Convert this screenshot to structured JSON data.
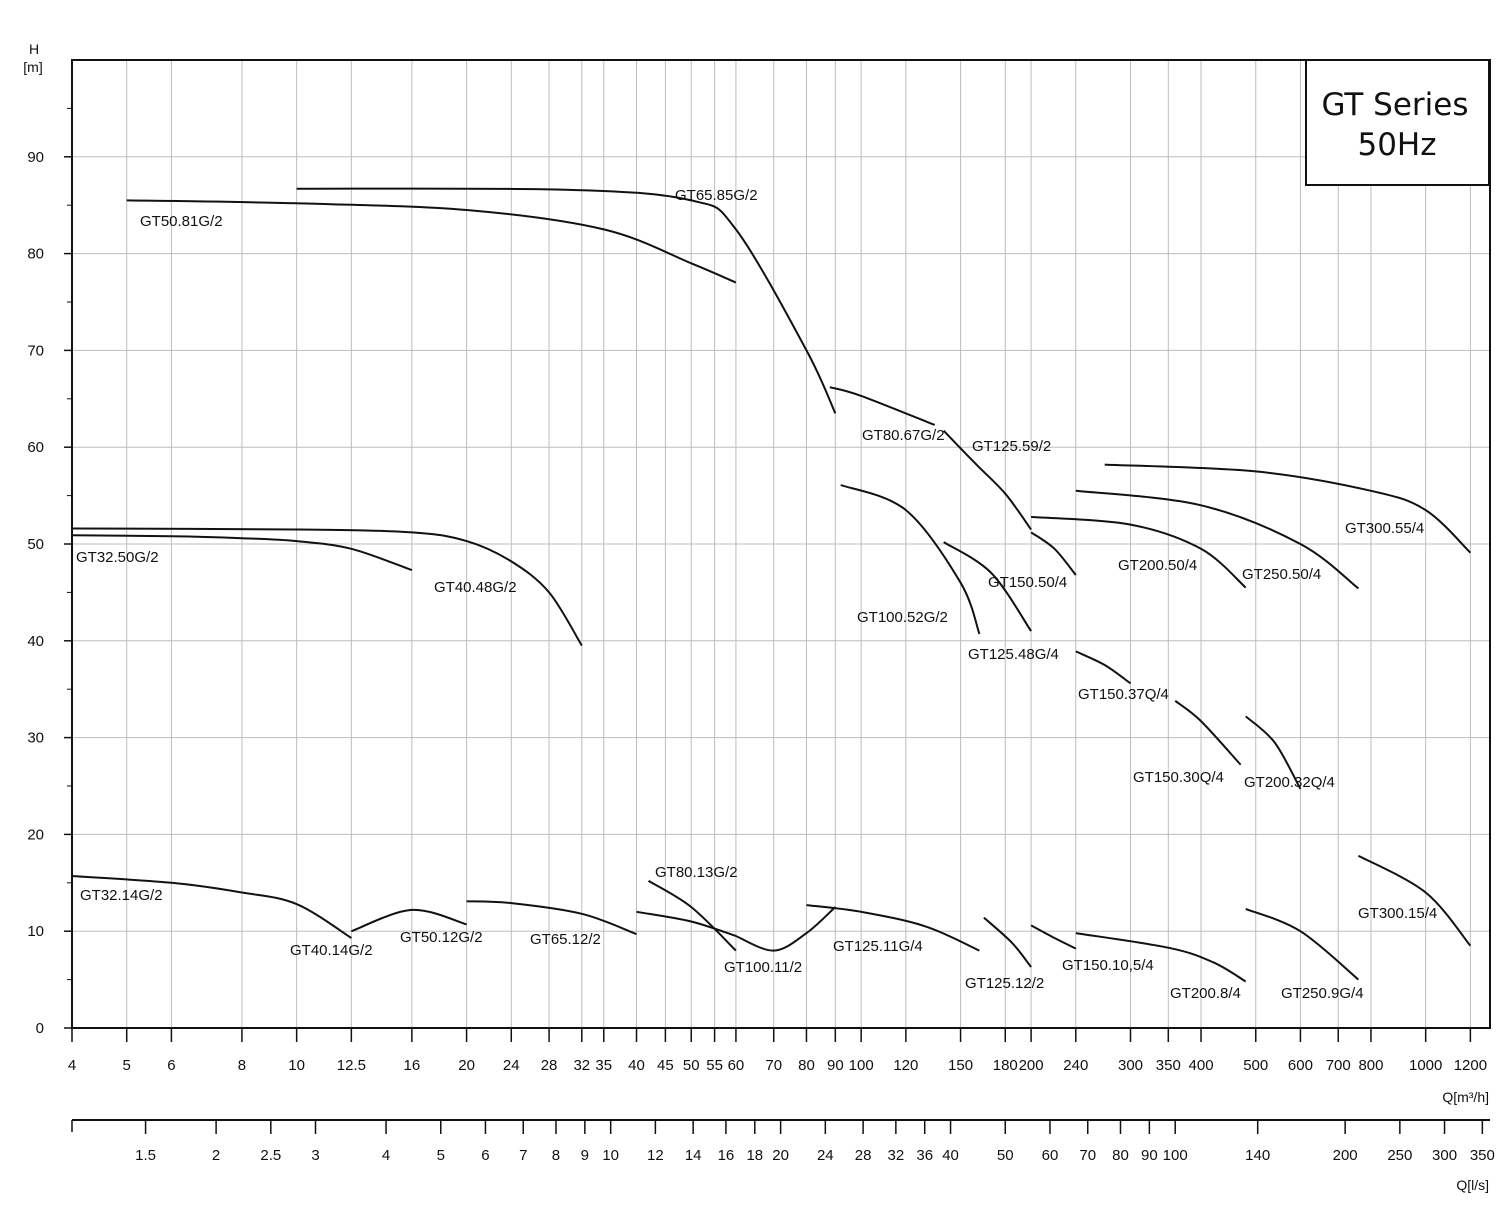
{
  "chart_data": {
    "type": "line",
    "title_lines": [
      "GT Series",
      "50Hz"
    ],
    "ylabel": "H",
    "ylabel_unit": "[m]",
    "xlabel_top": "Q[m³/h]",
    "xlabel_bottom": "Q[l/s]",
    "x_scale": "log",
    "xlim": [
      4,
      1300
    ],
    "ylim": [
      0,
      100
    ],
    "y_ticks": [
      0,
      10,
      20,
      30,
      40,
      50,
      60,
      70,
      80,
      90
    ],
    "x_ticks_m3h": [
      {
        "v": 4,
        "t": "4"
      },
      {
        "v": 5,
        "t": "5"
      },
      {
        "v": 6,
        "t": "6"
      },
      {
        "v": 8,
        "t": "8"
      },
      {
        "v": 10,
        "t": "10"
      },
      {
        "v": 12.5,
        "t": "12.5"
      },
      {
        "v": 16,
        "t": "16"
      },
      {
        "v": 20,
        "t": "20"
      },
      {
        "v": 24,
        "t": "24"
      },
      {
        "v": 28,
        "t": "28"
      },
      {
        "v": 32,
        "t": "32"
      },
      {
        "v": 35,
        "t": "35"
      },
      {
        "v": 40,
        "t": "40"
      },
      {
        "v": 45,
        "t": "45"
      },
      {
        "v": 50,
        "t": "50"
      },
      {
        "v": 55,
        "t": "55"
      },
      {
        "v": 60,
        "t": "60"
      },
      {
        "v": 70,
        "t": "70"
      },
      {
        "v": 80,
        "t": "80"
      },
      {
        "v": 90,
        "t": "90"
      },
      {
        "v": 100,
        "t": "100"
      },
      {
        "v": 120,
        "t": "120"
      },
      {
        "v": 150,
        "t": "150"
      },
      {
        "v": 180,
        "t": "180"
      },
      {
        "v": 200,
        "t": "200"
      },
      {
        "v": 240,
        "t": "240"
      },
      {
        "v": 300,
        "t": "300"
      },
      {
        "v": 350,
        "t": "350"
      },
      {
        "v": 400,
        "t": "400"
      },
      {
        "v": 500,
        "t": "500"
      },
      {
        "v": 600,
        "t": "600"
      },
      {
        "v": 700,
        "t": "700"
      },
      {
        "v": 800,
        "t": "800"
      },
      {
        "v": 1000,
        "t": "1000"
      },
      {
        "v": 1200,
        "t": "1200"
      }
    ],
    "x_ticks_ls": [
      {
        "v": 1.5,
        "t": "1.5"
      },
      {
        "v": 2,
        "t": "2"
      },
      {
        "v": 2.5,
        "t": "2.5"
      },
      {
        "v": 3,
        "t": "3"
      },
      {
        "v": 4,
        "t": "4"
      },
      {
        "v": 5,
        "t": "5"
      },
      {
        "v": 6,
        "t": "6"
      },
      {
        "v": 7,
        "t": "7"
      },
      {
        "v": 8,
        "t": "8"
      },
      {
        "v": 9,
        "t": "9"
      },
      {
        "v": 10,
        "t": "10"
      },
      {
        "v": 12,
        "t": "12"
      },
      {
        "v": 14,
        "t": "14"
      },
      {
        "v": 16,
        "t": "16"
      },
      {
        "v": 18,
        "t": "18"
      },
      {
        "v": 20,
        "t": "20"
      },
      {
        "v": 24,
        "t": "24"
      },
      {
        "v": 28,
        "t": "28"
      },
      {
        "v": 32,
        "t": "32"
      },
      {
        "v": 36,
        "t": "36"
      },
      {
        "v": 40,
        "t": "40"
      },
      {
        "v": 50,
        "t": "50"
      },
      {
        "v": 60,
        "t": "60"
      },
      {
        "v": 70,
        "t": "70"
      },
      {
        "v": 80,
        "t": "80"
      },
      {
        "v": 90,
        "t": "90"
      },
      {
        "v": 100,
        "t": "100"
      },
      {
        "v": 140,
        "t": "140"
      },
      {
        "v": 200,
        "t": "200"
      },
      {
        "v": 250,
        "t": "250"
      },
      {
        "v": 300,
        "t": "300"
      },
      {
        "v": 350,
        "t": "350"
      }
    ],
    "grid": true,
    "series": [
      {
        "name": "GT32.14G/2",
        "x": [
          4,
          6,
          8,
          10,
          12.5
        ],
        "y": [
          15.7,
          15,
          14,
          12.8,
          9.3
        ]
      },
      {
        "name": "GT32.50G/2",
        "x": [
          4,
          6,
          8,
          10,
          12.5,
          16
        ],
        "y": [
          50.9,
          50.8,
          50.6,
          50.3,
          49.5,
          47.3
        ]
      },
      {
        "name": "GT40.14G/2",
        "x": [
          12.5,
          16,
          20
        ],
        "y": [
          10,
          12.2,
          10.7
        ]
      },
      {
        "name": "GT40.48G/2",
        "x": [
          4,
          10,
          16,
          20,
          24,
          28,
          32
        ],
        "y": [
          51.6,
          51.5,
          51.2,
          50.3,
          48.2,
          45,
          39.5
        ]
      },
      {
        "name": "GT50.12G/2",
        "x": [
          20,
          24,
          32,
          40
        ],
        "y": [
          13.1,
          12.9,
          11.8,
          9.7
        ]
      },
      {
        "name": "GT50.81G/2",
        "x": [
          5,
          10,
          20,
          35,
          50,
          60
        ],
        "y": [
          85.5,
          85.2,
          84.5,
          82.5,
          79,
          77
        ]
      },
      {
        "name": "GT65.12/2",
        "x": [
          40,
          50,
          60
        ],
        "y": [
          12,
          11,
          9.5
        ]
      },
      {
        "name": "GT65.85G/2",
        "x": [
          10,
          30,
          50,
          60,
          80,
          90
        ],
        "y": [
          86.7,
          86.6,
          85.5,
          82.5,
          70,
          63.5
        ]
      },
      {
        "name": "GT80.13G/2",
        "x": [
          42,
          50,
          60
        ],
        "y": [
          15.2,
          12.5,
          8
        ]
      },
      {
        "name": "GT80.67G/2",
        "x": [
          88,
          100,
          135
        ],
        "y": [
          66.2,
          65.3,
          62.3
        ]
      },
      {
        "name": "GT100.11/2",
        "x": [
          60,
          70,
          80,
          90
        ],
        "y": [
          9.5,
          8,
          9.8,
          12.5
        ]
      },
      {
        "name": "GT100.52G/2",
        "x": [
          92,
          120,
          150,
          162
        ],
        "y": [
          56.1,
          53.5,
          46,
          40.7
        ]
      },
      {
        "name": "GT125.11G/4",
        "x": [
          80,
          100,
          130,
          162
        ],
        "y": [
          12.7,
          12,
          10.5,
          8
        ]
      },
      {
        "name": "GT125.12/2",
        "x": [
          165,
          185,
          200
        ],
        "y": [
          11.4,
          8.8,
          6.3
        ]
      },
      {
        "name": "GT125.48G/4",
        "x": [
          140,
          170,
          200
        ],
        "y": [
          50.2,
          47,
          41
        ]
      },
      {
        "name": "GT125.59/2",
        "x": [
          140,
          160,
          180,
          200
        ],
        "y": [
          61.7,
          58.2,
          55.2,
          51.5
        ]
      },
      {
        "name": "GT150.10,5/4",
        "x": [
          200,
          220,
          240
        ],
        "y": [
          10.6,
          9.3,
          8.2
        ]
      },
      {
        "name": "GT150.37Q/4",
        "x": [
          240,
          270,
          300
        ],
        "y": [
          38.9,
          37.5,
          35.6
        ]
      },
      {
        "name": "GT150.30Q/4",
        "x": [
          360,
          400,
          470
        ],
        "y": [
          33.8,
          31.7,
          27.2
        ]
      },
      {
        "name": "GT150.50/4",
        "x": [
          200,
          220,
          240
        ],
        "y": [
          51.2,
          49.5,
          46.8
        ]
      },
      {
        "name": "GT200.8/4",
        "x": [
          240,
          350,
          420,
          480
        ],
        "y": [
          9.8,
          8.3,
          6.8,
          4.8
        ]
      },
      {
        "name": "GT200.32Q/4",
        "x": [
          480,
          540,
          600
        ],
        "y": [
          32.2,
          29.5,
          24.7
        ]
      },
      {
        "name": "GT200.50/4",
        "x": [
          200,
          300,
          400,
          480
        ],
        "y": [
          52.8,
          52,
          49.5,
          45.5
        ]
      },
      {
        "name": "GT250.9G/4",
        "x": [
          480,
          600,
          760
        ],
        "y": [
          12.3,
          10,
          5
        ]
      },
      {
        "name": "GT250.50/4",
        "x": [
          240,
          400,
          600,
          760
        ],
        "y": [
          55.5,
          54,
          50,
          45.4
        ]
      },
      {
        "name": "GT300.15/4",
        "x": [
          760,
          1000,
          1200
        ],
        "y": [
          17.8,
          14,
          8.5
        ]
      },
      {
        "name": "GT300.55/4",
        "x": [
          270,
          500,
          800,
          1000,
          1200
        ],
        "y": [
          58.2,
          57.5,
          55.5,
          53.5,
          49.1
        ]
      }
    ]
  }
}
